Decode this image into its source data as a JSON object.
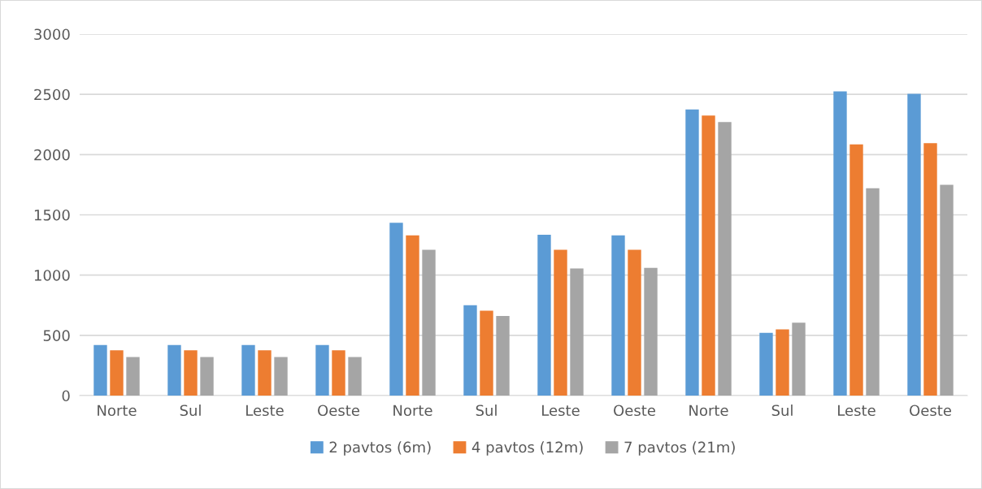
{
  "chart_data": {
    "type": "bar",
    "categories": [
      "Norte",
      "Sul",
      "Leste",
      "Oeste",
      "Norte",
      "Sul",
      "Leste",
      "Oeste",
      "Norte",
      "Sul",
      "Leste",
      "Oeste"
    ],
    "series": [
      {
        "name": "2 pavtos (6m)",
        "color": "#5b9bd5",
        "values": [
          420,
          420,
          420,
          420,
          1435,
          750,
          1335,
          1330,
          2375,
          520,
          2525,
          2505
        ]
      },
      {
        "name": "4 pavtos (12m)",
        "color": "#ed7d31",
        "values": [
          375,
          375,
          375,
          375,
          1330,
          705,
          1210,
          1210,
          2325,
          550,
          2085,
          2095
        ]
      },
      {
        "name": "7 pavtos (21m)",
        "color": "#a5a5a5",
        "values": [
          320,
          320,
          320,
          320,
          1210,
          660,
          1055,
          1060,
          2270,
          605,
          1720,
          1750
        ]
      }
    ],
    "ylim": [
      0,
      3000
    ],
    "yticks": [
      0,
      500,
      1000,
      1500,
      2000,
      2500,
      3000
    ],
    "grid": "y",
    "legend": "bottom"
  }
}
